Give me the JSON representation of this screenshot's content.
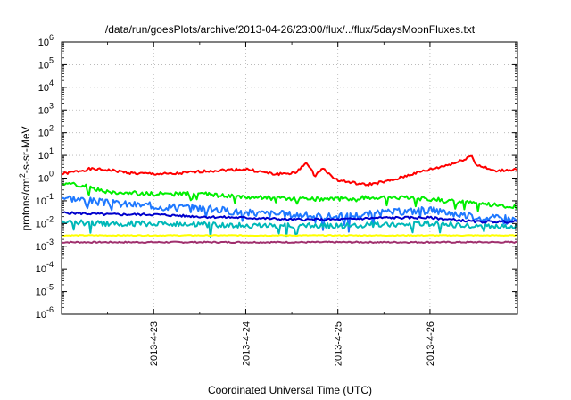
{
  "chart_data": {
    "type": "line",
    "title": "/data/run/goesPlots/archive/2013-04-26/23:00/flux/../flux/5daysMoonFluxes.txt",
    "xlabel": "Coordinated Universal Time (UTC)",
    "ylabel_parts": {
      "pre": "protons/cm",
      "sup": "2",
      "post": "-s-sr-MeV"
    },
    "yscale": "log",
    "ylim": [
      1e-06,
      1000000.0
    ],
    "xlim": [
      0.0,
      4.95
    ],
    "grid": true,
    "x_tick_labels": [
      {
        "at": 1,
        "label": "2013-4-23"
      },
      {
        "at": 2,
        "label": "2013-4-24"
      },
      {
        "at": 3,
        "label": "2013-4-25"
      },
      {
        "at": 4,
        "label": "2013-4-26"
      }
    ],
    "y_tick_labels": [
      {
        "exp": -6,
        "label": "10",
        "sup": "-6"
      },
      {
        "exp": -5,
        "label": "10",
        "sup": "-5"
      },
      {
        "exp": -4,
        "label": "10",
        "sup": "-4"
      },
      {
        "exp": -3,
        "label": "10",
        "sup": "-3"
      },
      {
        "exp": -2,
        "label": "10",
        "sup": "-2"
      },
      {
        "exp": -1,
        "label": "10",
        "sup": "-1"
      },
      {
        "exp": 0,
        "label": "10",
        "sup": "0"
      },
      {
        "exp": 1,
        "label": "10",
        "sup": "1"
      },
      {
        "exp": 2,
        "label": "10",
        "sup": "2"
      },
      {
        "exp": 3,
        "label": "10",
        "sup": "3"
      },
      {
        "exp": 4,
        "label": "10",
        "sup": "4"
      },
      {
        "exp": 5,
        "label": "10",
        "sup": "5"
      },
      {
        "exp": 6,
        "label": "10",
        "sup": "6"
      }
    ],
    "series": [
      {
        "color": "#ff0000",
        "noise": 0.06,
        "seed": 1,
        "points": [
          [
            0.0,
            1.5
          ],
          [
            0.3,
            2.5
          ],
          [
            0.5,
            2.3
          ],
          [
            0.8,
            1.6
          ],
          [
            1.2,
            1.5
          ],
          [
            1.6,
            2.1
          ],
          [
            2.0,
            2.5
          ],
          [
            2.3,
            1.5
          ],
          [
            2.55,
            1.7
          ],
          [
            2.65,
            5
          ],
          [
            2.75,
            1.3
          ],
          [
            2.85,
            3
          ],
          [
            2.9,
            1.5
          ],
          [
            3.0,
            0.8
          ],
          [
            3.3,
            0.5
          ],
          [
            3.6,
            0.8
          ],
          [
            3.8,
            1.5
          ],
          [
            4.1,
            3
          ],
          [
            4.3,
            5
          ],
          [
            4.45,
            10
          ],
          [
            4.5,
            4
          ],
          [
            4.7,
            2
          ],
          [
            4.95,
            2.5
          ]
        ]
      },
      {
        "color": "#00ee00",
        "noise": 0.09,
        "seed": 2,
        "points": [
          [
            0.0,
            0.6
          ],
          [
            0.2,
            0.5
          ],
          [
            0.5,
            0.25
          ],
          [
            1.0,
            0.2
          ],
          [
            1.5,
            0.2
          ],
          [
            2.0,
            0.15
          ],
          [
            2.5,
            0.12
          ],
          [
            3.0,
            0.12
          ],
          [
            3.5,
            0.15
          ],
          [
            4.0,
            0.12
          ],
          [
            4.5,
            0.08
          ],
          [
            4.95,
            0.05
          ]
        ]
      },
      {
        "color": "#1e78ff",
        "noise": 0.16,
        "seed": 3,
        "points": [
          [
            0.0,
            0.15
          ],
          [
            0.5,
            0.08
          ],
          [
            1.0,
            0.06
          ],
          [
            1.5,
            0.05
          ],
          [
            2.0,
            0.03
          ],
          [
            2.5,
            0.025
          ],
          [
            3.0,
            0.02
          ],
          [
            3.5,
            0.03
          ],
          [
            4.0,
            0.04
          ],
          [
            4.5,
            0.02
          ],
          [
            4.95,
            0.015
          ]
        ]
      },
      {
        "color": "#00b8b8",
        "noise": 0.12,
        "seed": 4,
        "points": [
          [
            0.0,
            0.012
          ],
          [
            0.5,
            0.01
          ],
          [
            1.0,
            0.01
          ],
          [
            1.5,
            0.009
          ],
          [
            2.0,
            0.008
          ],
          [
            2.5,
            0.008
          ],
          [
            3.0,
            0.008
          ],
          [
            3.5,
            0.009
          ],
          [
            4.0,
            0.01
          ],
          [
            4.5,
            0.008
          ],
          [
            4.95,
            0.007
          ]
        ]
      },
      {
        "color": "#0000cc",
        "noise": 0.05,
        "seed": 5,
        "points": [
          [
            0.0,
            0.03
          ],
          [
            0.5,
            0.025
          ],
          [
            1.0,
            0.025
          ],
          [
            1.5,
            0.02
          ],
          [
            2.0,
            0.018
          ],
          [
            2.5,
            0.015
          ],
          [
            3.0,
            0.015
          ],
          [
            3.5,
            0.018
          ],
          [
            4.0,
            0.018
          ],
          [
            4.5,
            0.012
          ],
          [
            4.95,
            0.012
          ]
        ]
      },
      {
        "color": "#ffff00",
        "noise": 0.02,
        "seed": 6,
        "points": [
          [
            0.0,
            0.003
          ],
          [
            1.0,
            0.003
          ],
          [
            2.0,
            0.003
          ],
          [
            3.0,
            0.003
          ],
          [
            4.0,
            0.003
          ],
          [
            4.95,
            0.003
          ]
        ]
      },
      {
        "color": "#a0306e",
        "noise": 0.03,
        "seed": 7,
        "points": [
          [
            0.0,
            0.0015
          ],
          [
            1.0,
            0.0015
          ],
          [
            2.0,
            0.0015
          ],
          [
            3.0,
            0.0015
          ],
          [
            4.0,
            0.0015
          ],
          [
            4.95,
            0.0015
          ]
        ]
      }
    ]
  }
}
